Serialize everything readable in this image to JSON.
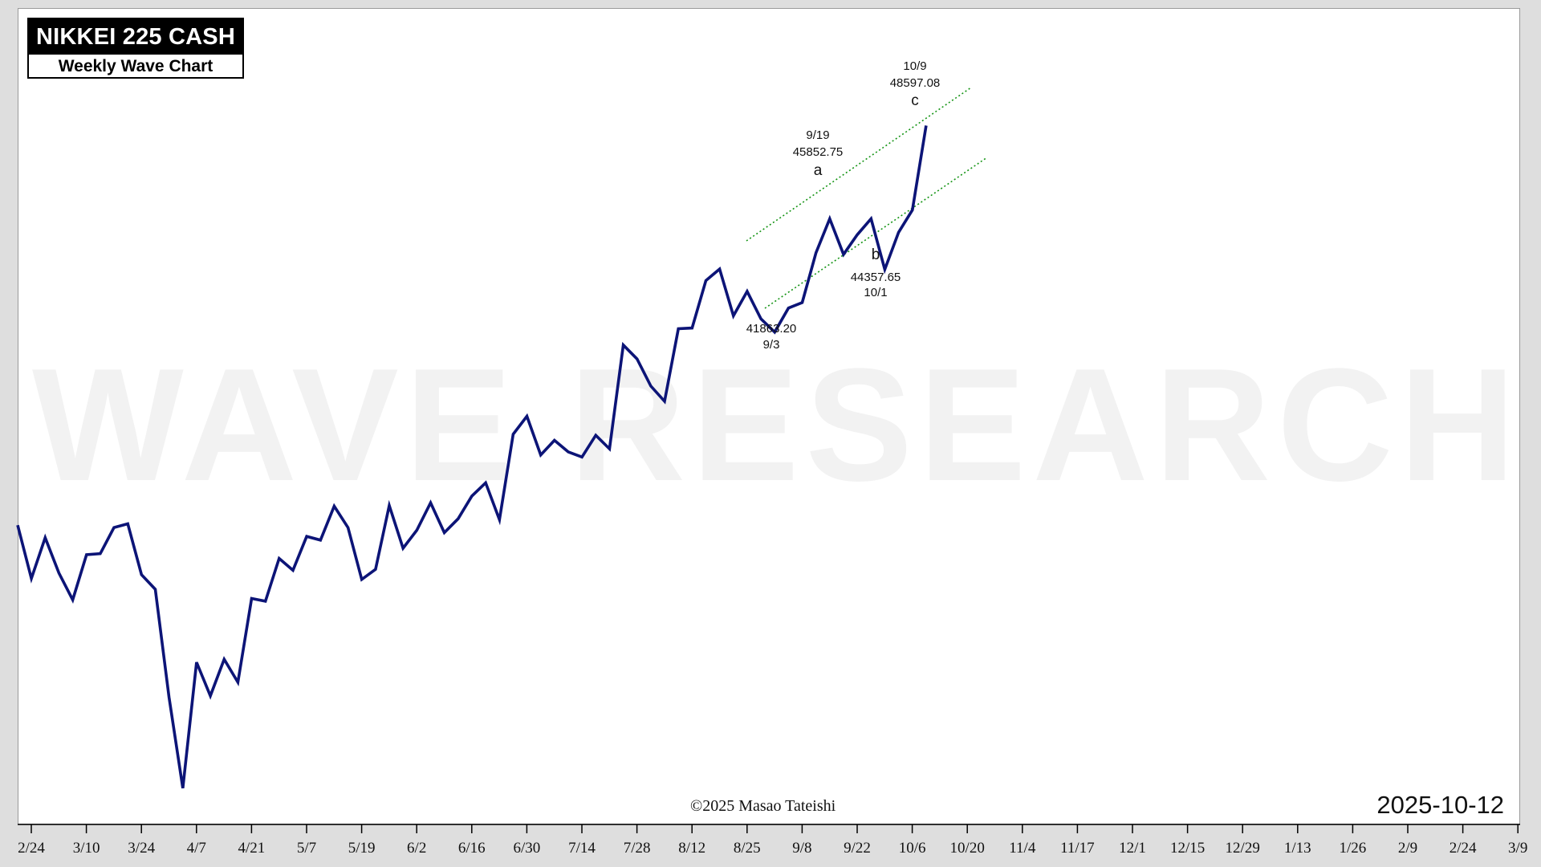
{
  "title": {
    "main": "NIKKEI 225 CASH",
    "sub": "Weekly Wave Chart"
  },
  "watermark": "WAVE RESEARCH",
  "copyright": "©2025 Masao Tateishi",
  "report_date": "2025-10-12",
  "colors": {
    "price_line": "#0c1477",
    "channel": "#149414",
    "frame_bg": "#dedede"
  },
  "chart_data": {
    "type": "line",
    "title": "NIKKEI 225 CASH",
    "subtitle": "Weekly Wave Chart",
    "xlabel": "",
    "ylabel": "",
    "grid": false,
    "x_ticks": [
      "2/24",
      "3/10",
      "3/24",
      "4/7",
      "4/21",
      "5/7",
      "5/19",
      "6/2",
      "6/16",
      "6/30",
      "7/14",
      "7/28",
      "8/12",
      "8/25",
      "9/8",
      "9/22",
      "10/6",
      "10/20",
      "11/4",
      "11/17",
      "12/1",
      "12/15",
      "12/29",
      "1/13",
      "1/26",
      "2/9",
      "2/24",
      "3/9"
    ],
    "ylim": [
      28000,
      50500
    ],
    "series": [
      {
        "name": "",
        "values": [
          36820,
          35250,
          36450,
          35410,
          34620,
          35950,
          35980,
          36750,
          36860,
          35360,
          34930,
          31750,
          29070,
          32780,
          31790,
          32870,
          32190,
          34660,
          34580,
          35840,
          35490,
          36490,
          36380,
          37380,
          36750,
          35220,
          35520,
          37400,
          36140,
          36670,
          37480,
          36600,
          37010,
          37680,
          38070,
          36980,
          39500,
          40030,
          38890,
          39320,
          38980,
          38830,
          39470,
          39070,
          42130,
          41720,
          40920,
          40470,
          42610,
          42630,
          44030,
          44370,
          42990,
          43710,
          42900,
          42510,
          43220,
          43380,
          44850,
          45852,
          44800,
          45380,
          45852,
          44357,
          45450,
          46110,
          48597
        ],
        "swing_labels": [
          {
            "label": "",
            "price": "41863.20",
            "date": "9/3"
          },
          {
            "label": "a",
            "price": "45852.75",
            "date": "9/19"
          },
          {
            "label": "b",
            "price": "44357.65",
            "date": "10/1"
          },
          {
            "label": "c",
            "price": "48597.08",
            "date": "10/9"
          }
        ]
      }
    ],
    "annotations": [
      "channel upper line",
      "channel lower line"
    ]
  }
}
